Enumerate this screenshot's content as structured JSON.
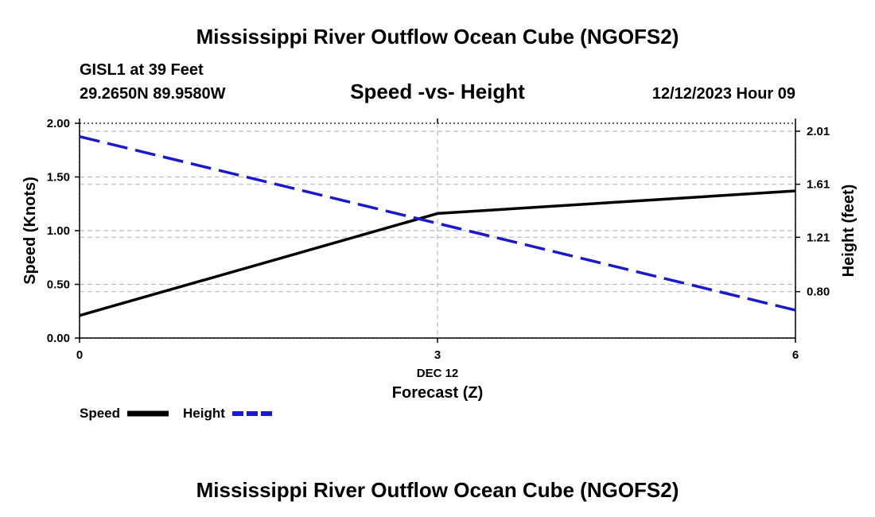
{
  "page_title": "Mississippi River Outflow Ocean Cube (NGOFS2)",
  "footer_title": "Mississippi River Outflow Ocean Cube (NGOFS2)",
  "station_line": "GISL1 at 39 Feet",
  "coords_line": "29.2650N  89.9580W",
  "datetime_line": "12/12/2023 Hour 09",
  "colors": {
    "speed": "#000000",
    "height": "#1a1acc",
    "grid": "#bbbbbb"
  },
  "chart_data": {
    "type": "line",
    "title": "Speed -vs- Height",
    "xlabel": "Forecast (Z)",
    "xdate_label": "DEC 12",
    "ylabel": "Speed (Knots)",
    "y2label": "Height (feet)",
    "xlim": [
      0,
      6
    ],
    "ylim": [
      0,
      2
    ],
    "y2lim": [
      0.45,
      2.07
    ],
    "xticks": [
      0,
      3,
      6
    ],
    "xtick_labels": [
      "0",
      "3",
      "6"
    ],
    "yticks": [
      0,
      0.5,
      1.0,
      1.5,
      2.0
    ],
    "ytick_labels": [
      "0.00",
      "0.50",
      "1.00",
      "1.50",
      "2.00"
    ],
    "y2ticks": [
      0.8,
      1.21,
      1.61,
      2.01
    ],
    "y2tick_labels": [
      "0.80",
      "1.21",
      "1.61",
      "2.01"
    ],
    "grid": true,
    "legend_position": "bottom-left",
    "series": [
      {
        "name": "Speed",
        "axis": "left",
        "style": "solid",
        "x": [
          0,
          3,
          6
        ],
        "values": [
          0.21,
          1.16,
          1.37
        ]
      },
      {
        "name": "Height",
        "axis": "right",
        "style": "dashed",
        "x": [
          0,
          6
        ],
        "values": [
          1.97,
          0.66
        ]
      }
    ]
  }
}
